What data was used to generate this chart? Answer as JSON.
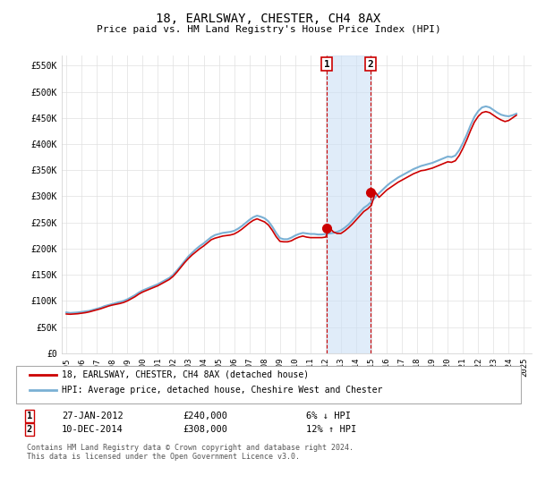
{
  "title": "18, EARLSWAY, CHESTER, CH4 8AX",
  "subtitle": "Price paid vs. HM Land Registry's House Price Index (HPI)",
  "ylabel_ticks": [
    0,
    50000,
    100000,
    150000,
    200000,
    250000,
    300000,
    350000,
    400000,
    450000,
    500000,
    550000
  ],
  "ylabel_labels": [
    "£0",
    "£50K",
    "£100K",
    "£150K",
    "£200K",
    "£250K",
    "£300K",
    "£350K",
    "£400K",
    "£450K",
    "£500K",
    "£550K"
  ],
  "ylim": [
    0,
    570000
  ],
  "xlim_start": 1994.7,
  "xlim_end": 2025.5,
  "transaction1_date": 2012.07,
  "transaction1_price": 240000,
  "transaction1_label": "1",
  "transaction2_date": 2014.92,
  "transaction2_price": 308000,
  "transaction2_label": "2",
  "shade_color": "#cce0f5",
  "shade_alpha": 0.6,
  "line_color_red": "#cc0000",
  "line_color_blue": "#7ab0d4",
  "legend_label1": "18, EARLSWAY, CHESTER, CH4 8AX (detached house)",
  "legend_label2": "HPI: Average price, detached house, Cheshire West and Chester",
  "annotation1_text": "27-JAN-2012",
  "annotation1_price_text": "£240,000",
  "annotation1_hpi_text": "6% ↓ HPI",
  "annotation2_text": "10-DEC-2014",
  "annotation2_price_text": "£308,000",
  "annotation2_hpi_text": "12% ↑ HPI",
  "footer_text": "Contains HM Land Registry data © Crown copyright and database right 2024.\nThis data is licensed under the Open Government Licence v3.0.",
  "background_color": "#ffffff",
  "grid_color": "#e0e0e0",
  "hpi_data_x": [
    1995.0,
    1995.25,
    1995.5,
    1995.75,
    1996.0,
    1996.25,
    1996.5,
    1996.75,
    1997.0,
    1997.25,
    1997.5,
    1997.75,
    1998.0,
    1998.25,
    1998.5,
    1998.75,
    1999.0,
    1999.25,
    1999.5,
    1999.75,
    2000.0,
    2000.25,
    2000.5,
    2000.75,
    2001.0,
    2001.25,
    2001.5,
    2001.75,
    2002.0,
    2002.25,
    2002.5,
    2002.75,
    2003.0,
    2003.25,
    2003.5,
    2003.75,
    2004.0,
    2004.25,
    2004.5,
    2004.75,
    2005.0,
    2005.25,
    2005.5,
    2005.75,
    2006.0,
    2006.25,
    2006.5,
    2006.75,
    2007.0,
    2007.25,
    2007.5,
    2007.75,
    2008.0,
    2008.25,
    2008.5,
    2008.75,
    2009.0,
    2009.25,
    2009.5,
    2009.75,
    2010.0,
    2010.25,
    2010.5,
    2010.75,
    2011.0,
    2011.25,
    2011.5,
    2011.75,
    2012.0,
    2012.25,
    2012.5,
    2012.75,
    2013.0,
    2013.25,
    2013.5,
    2013.75,
    2014.0,
    2014.25,
    2014.5,
    2014.75,
    2015.0,
    2015.25,
    2015.5,
    2015.75,
    2016.0,
    2016.25,
    2016.5,
    2016.75,
    2017.0,
    2017.25,
    2017.5,
    2017.75,
    2018.0,
    2018.25,
    2018.5,
    2018.75,
    2019.0,
    2019.25,
    2019.5,
    2019.75,
    2020.0,
    2020.25,
    2020.5,
    2020.75,
    2021.0,
    2021.25,
    2021.5,
    2021.75,
    2022.0,
    2022.25,
    2022.5,
    2022.75,
    2023.0,
    2023.25,
    2023.5,
    2023.75,
    2024.0,
    2024.25,
    2024.5
  ],
  "hpi_data_y": [
    78000,
    77000,
    77500,
    78000,
    79000,
    80000,
    81000,
    83000,
    85000,
    87000,
    90000,
    92000,
    94000,
    96000,
    98000,
    100000,
    103000,
    107000,
    111000,
    116000,
    120000,
    123000,
    126000,
    129000,
    132000,
    136000,
    140000,
    144000,
    150000,
    158000,
    167000,
    176000,
    185000,
    192000,
    199000,
    205000,
    210000,
    216000,
    222000,
    226000,
    228000,
    230000,
    231000,
    232000,
    234000,
    238000,
    243000,
    249000,
    255000,
    260000,
    263000,
    261000,
    258000,
    252000,
    242000,
    230000,
    220000,
    218000,
    218000,
    221000,
    225000,
    228000,
    230000,
    229000,
    228000,
    228000,
    227000,
    227000,
    228000,
    229000,
    230000,
    232000,
    235000,
    240000,
    246000,
    254000,
    262000,
    270000,
    278000,
    283000,
    290000,
    298000,
    306000,
    313000,
    320000,
    326000,
    331000,
    336000,
    340000,
    344000,
    348000,
    352000,
    355000,
    358000,
    360000,
    362000,
    364000,
    367000,
    370000,
    373000,
    376000,
    375000,
    378000,
    388000,
    402000,
    418000,
    436000,
    452000,
    463000,
    470000,
    472000,
    470000,
    465000,
    460000,
    456000,
    454000,
    453000,
    455000,
    458000
  ],
  "price_data_x": [
    1995.0,
    1995.25,
    1995.5,
    1995.75,
    1996.0,
    1996.25,
    1996.5,
    1996.75,
    1997.0,
    1997.25,
    1997.5,
    1997.75,
    1998.0,
    1998.25,
    1998.5,
    1998.75,
    1999.0,
    1999.25,
    1999.5,
    1999.75,
    2000.0,
    2000.25,
    2000.5,
    2000.75,
    2001.0,
    2001.25,
    2001.5,
    2001.75,
    2002.0,
    2002.25,
    2002.5,
    2002.75,
    2003.0,
    2003.25,
    2003.5,
    2003.75,
    2004.0,
    2004.25,
    2004.5,
    2004.75,
    2005.0,
    2005.25,
    2005.5,
    2005.75,
    2006.0,
    2006.25,
    2006.5,
    2006.75,
    2007.0,
    2007.25,
    2007.5,
    2007.75,
    2008.0,
    2008.25,
    2008.5,
    2008.75,
    2009.0,
    2009.25,
    2009.5,
    2009.75,
    2010.0,
    2010.25,
    2010.5,
    2010.75,
    2011.0,
    2011.25,
    2011.5,
    2011.75,
    2012.0,
    2012.25,
    2012.5,
    2012.75,
    2013.0,
    2013.25,
    2013.5,
    2013.75,
    2014.0,
    2014.25,
    2014.5,
    2014.75,
    2015.0,
    2015.25,
    2015.5,
    2015.75,
    2016.0,
    2016.25,
    2016.5,
    2016.75,
    2017.0,
    2017.25,
    2017.5,
    2017.75,
    2018.0,
    2018.25,
    2018.5,
    2018.75,
    2019.0,
    2019.25,
    2019.5,
    2019.75,
    2020.0,
    2020.25,
    2020.5,
    2020.75,
    2021.0,
    2021.25,
    2021.5,
    2021.75,
    2022.0,
    2022.25,
    2022.5,
    2022.75,
    2023.0,
    2023.25,
    2023.5,
    2023.75,
    2024.0,
    2024.25,
    2024.5
  ],
  "price_data_y": [
    75000,
    74500,
    75000,
    75500,
    76500,
    77500,
    79000,
    81000,
    83000,
    85000,
    87500,
    90000,
    92000,
    93500,
    95000,
    97000,
    100000,
    104000,
    108000,
    113000,
    117000,
    120000,
    123000,
    126000,
    129000,
    133000,
    137000,
    141000,
    147000,
    155000,
    164000,
    173000,
    181000,
    188000,
    194000,
    200000,
    205000,
    211000,
    217000,
    220000,
    222000,
    224000,
    225000,
    226000,
    228000,
    232000,
    237000,
    243000,
    249000,
    254000,
    257000,
    254000,
    251000,
    245000,
    235000,
    223000,
    214000,
    213000,
    213000,
    215000,
    219000,
    222000,
    224000,
    222000,
    221000,
    221000,
    221000,
    221000,
    222000,
    240000,
    232000,
    229000,
    229000,
    234000,
    240000,
    247000,
    255000,
    263000,
    271000,
    276000,
    283000,
    308000,
    298000,
    305000,
    312000,
    317000,
    322000,
    327000,
    331000,
    335000,
    339000,
    343000,
    346000,
    349000,
    350000,
    352000,
    354000,
    357000,
    360000,
    363000,
    366000,
    365000,
    368000,
    378000,
    392000,
    408000,
    426000,
    442000,
    453000,
    460000,
    462000,
    460000,
    455000,
    450000,
    446000,
    443000,
    445000,
    450000,
    455000
  ]
}
